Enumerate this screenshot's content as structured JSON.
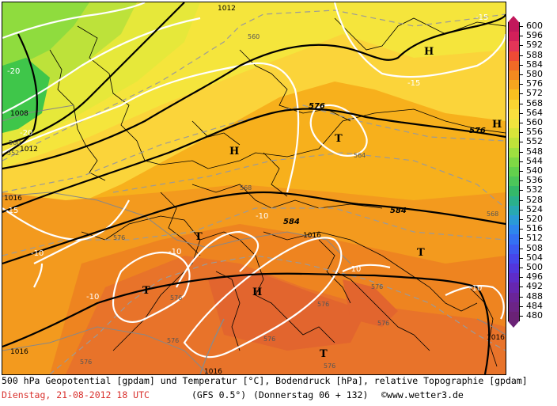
{
  "title": "500 hPa Geopotential [gpdam] und Temperatur [°C], Bodendruck [hPa], relative Topographie [gpdam]",
  "date": "Dienstag, 21-08-2012  18 UTC",
  "model": "(GFS 0.5°)",
  "forecast": "(Donnerstag 06 + 132)",
  "credit": "©www.wetter3.de",
  "colorbar": {
    "values": [
      "600",
      "596",
      "592",
      "588",
      "584",
      "580",
      "576",
      "572",
      "568",
      "564",
      "560",
      "556",
      "552",
      "548",
      "544",
      "540",
      "536",
      "532",
      "528",
      "524",
      "520",
      "516",
      "512",
      "508",
      "504",
      "500",
      "496",
      "492",
      "488",
      "484",
      "480"
    ],
    "colors": [
      "#c2185b",
      "#d2205a",
      "#e33558",
      "#ee4a36",
      "#f06a26",
      "#f38a1f",
      "#f6a51f",
      "#f9c020",
      "#fbd532",
      "#f9e03e",
      "#f0e43e",
      "#d8e43a",
      "#bfe23a",
      "#9ee040",
      "#7fd845",
      "#63d04d",
      "#4cc65a",
      "#34b86a",
      "#2ab08c",
      "#28a8b2",
      "#2a9ad6",
      "#2e86ec",
      "#3470f2",
      "#3c5af0",
      "#4646ea",
      "#5236dc",
      "#5e2cc8",
      "#6626b0",
      "#6a2498",
      "#6c2486",
      "#6a2276"
    ]
  },
  "map": {
    "geopotential_labels": [
      "576",
      "576",
      "584",
      "584"
    ],
    "temperature_labels": [
      "-20",
      "-20",
      "-15",
      "-15",
      "-15",
      "-10",
      "-10",
      "-10",
      "-10",
      "-10",
      "-10"
    ],
    "pressure_labels": [
      "1012",
      "1008",
      "1012",
      "1016",
      "1016",
      "1016",
      "1016",
      "1016"
    ],
    "topography_labels": [
      "560",
      "560",
      "552",
      "564",
      "568",
      "568",
      "576",
      "576",
      "576",
      "576",
      "576",
      "576",
      "576",
      "576",
      "576"
    ],
    "high_symbols": [
      "H",
      "H",
      "H",
      "H"
    ],
    "low_symbols": [
      "T",
      "T",
      "T",
      "T",
      "T",
      "T"
    ]
  }
}
